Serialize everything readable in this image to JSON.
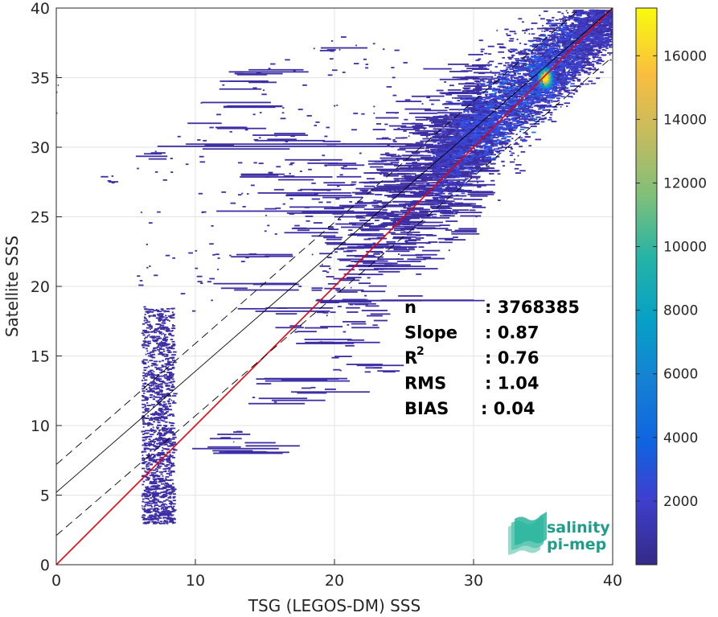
{
  "chart_data": {
    "type": "heatmap",
    "title": "",
    "xlabel": "TSG (LEGOS-DM) SSS",
    "ylabel": "Satellite SSS",
    "xlim": [
      0,
      40
    ],
    "ylim": [
      0,
      40
    ],
    "xticks": [
      "0",
      "10",
      "20",
      "30",
      "40"
    ],
    "yticks": [
      "0",
      "5",
      "10",
      "15",
      "20",
      "25",
      "30",
      "35",
      "40"
    ],
    "grid": true,
    "colorbar": {
      "range": [
        0,
        17500
      ],
      "ticks": [
        "2000",
        "4000",
        "6000",
        "8000",
        "10000",
        "12000",
        "14000",
        "16000"
      ],
      "colormap": "parula"
    },
    "density_clusters": [
      {
        "x": 35.1,
        "y": 35.0,
        "count": 17000
      },
      {
        "x": 33,
        "y": 33,
        "count": 3500
      },
      {
        "x": 31,
        "y": 30,
        "count": 2000
      },
      {
        "x": 28.5,
        "y": 27.5,
        "count": 1200
      },
      {
        "x": 26,
        "y": 24.5,
        "count": 600
      },
      {
        "x": 22,
        "y": 20,
        "count": 300
      },
      {
        "x": 7,
        "y": 10,
        "count": 300
      }
    ],
    "lines": [
      {
        "kind": "identity",
        "color": "#e8000b",
        "x": [
          0,
          40
        ],
        "y": [
          0,
          40
        ]
      },
      {
        "kind": "regression",
        "color": "#000000",
        "x": [
          0,
          40
        ],
        "y": [
          5.2,
          40
        ]
      },
      {
        "kind": "regression-plus-rms",
        "color": "#000000",
        "dash": true,
        "x": [
          0,
          40
        ],
        "y": [
          7.2,
          42
        ]
      },
      {
        "kind": "regression-minus-rms",
        "color": "#000000",
        "dash": true,
        "x": [
          0,
          40
        ],
        "y": [
          2.1,
          36.5
        ]
      }
    ],
    "annotations": [
      {
        "label": "n",
        "sup": "",
        "value": ": 3768385"
      },
      {
        "label": "Slope",
        "sup": "",
        "value": ": 0.87"
      },
      {
        "label": "R",
        "sup": "2",
        "value": ": 0.76"
      },
      {
        "label": "RMS",
        "sup": "",
        "value": ": 1.04"
      },
      {
        "label": "BIAS",
        "sup": "",
        "value": ": 0.04"
      }
    ]
  },
  "logo": {
    "line1": "salinity",
    "line2": "pi-mep",
    "colors": [
      "#1e9d8b",
      "#2bb59e",
      "#5cc7b2",
      "#9adccc"
    ]
  }
}
